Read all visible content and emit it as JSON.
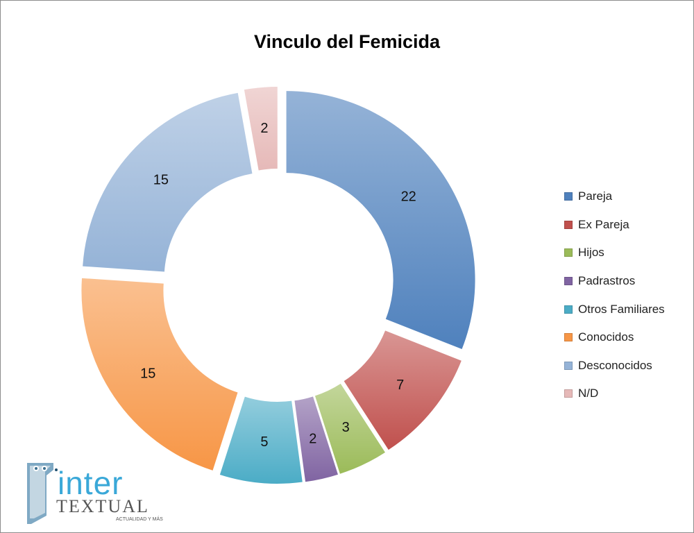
{
  "chart_data": {
    "type": "pie",
    "title": "Vinculo del Femicida",
    "categories": [
      "Pareja",
      "Ex Pareja",
      "Hijos",
      "Padrastros",
      "Otros Familiares",
      "Conocidos",
      "Desconocidos",
      "N/D"
    ],
    "values": [
      22,
      7,
      3,
      2,
      5,
      15,
      15,
      2
    ],
    "colors": [
      "#4f81bd",
      "#c0504d",
      "#9bbb59",
      "#8064a2",
      "#4bacc6",
      "#f79646",
      "#95b3d7",
      "#e6b9b8"
    ],
    "legend_position": "right"
  },
  "watermark": {
    "name": "inter",
    "subtitle": "TEXTUAL",
    "tagline": "ACTUALIDAD Y MÁS"
  }
}
